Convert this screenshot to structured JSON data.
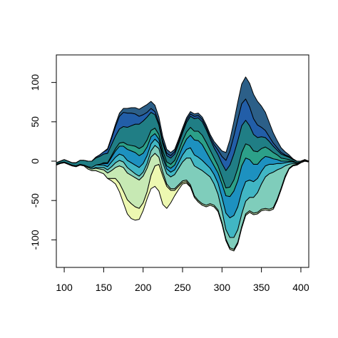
{
  "chart_data": {
    "type": "area",
    "subtype": "streamgraph",
    "title": "",
    "xlabel": "",
    "ylabel": "",
    "xlim": [
      90,
      410
    ],
    "ylim": [
      -135,
      135
    ],
    "grid": false,
    "legend": "none",
    "x_ticks": [
      100,
      150,
      200,
      250,
      300,
      350,
      400
    ],
    "y_ticks": [
      -100,
      -50,
      0,
      50,
      100
    ],
    "x_tick_labels": [
      "100",
      "150",
      "200",
      "250",
      "300",
      "350",
      "400"
    ],
    "y_tick_labels": [
      "-100",
      "-50",
      "0",
      "50",
      "100"
    ],
    "x": [
      90,
      95,
      100,
      105,
      110,
      115,
      120,
      125,
      130,
      135,
      140,
      145,
      150,
      155,
      160,
      165,
      170,
      175,
      180,
      185,
      190,
      195,
      200,
      205,
      210,
      215,
      220,
      225,
      230,
      235,
      240,
      245,
      250,
      255,
      260,
      265,
      270,
      275,
      280,
      285,
      290,
      295,
      300,
      305,
      310,
      315,
      320,
      325,
      330,
      335,
      340,
      345,
      350,
      355,
      360,
      365,
      370,
      375,
      380,
      385,
      390,
      395,
      400,
      405,
      410
    ],
    "baseline": [
      -5,
      -3,
      -2,
      -4,
      -6,
      -7,
      -5,
      -6,
      -10,
      -12,
      -12,
      -14,
      -16,
      -22,
      -25,
      -29,
      -39,
      -53,
      -67,
      -73,
      -75,
      -74,
      -63,
      -48,
      -35,
      -32,
      -38,
      -55,
      -60,
      -53,
      -44,
      -36,
      -29,
      -28,
      -33,
      -46,
      -52,
      -56,
      -58,
      -56,
      -58,
      -64,
      -80,
      -101,
      -112,
      -114,
      -105,
      -85,
      -69,
      -65,
      -68,
      -67,
      -63,
      -62,
      -63,
      -61,
      -50,
      -36,
      -21,
      -10,
      -6,
      -5,
      -2,
      0,
      -1
    ],
    "series": [
      {
        "name": "",
        "color": "#edf8b1",
        "values": [
          0,
          0,
          0,
          0,
          0,
          0,
          0,
          0,
          0,
          0,
          0,
          0,
          0,
          0,
          3,
          7,
          11,
          15,
          18,
          19,
          17,
          14,
          10,
          9,
          17,
          26,
          34,
          36,
          28,
          16,
          7,
          4,
          2,
          2,
          1,
          0,
          0,
          0,
          0,
          0,
          0,
          0,
          0,
          0,
          0,
          0,
          0,
          0,
          0,
          0,
          0,
          0,
          0,
          0,
          0,
          0,
          0,
          0,
          0,
          0,
          0,
          0,
          0,
          0,
          0
        ]
      },
      {
        "name": "",
        "color": "#c7e9b4",
        "values": [
          1,
          1,
          1,
          1,
          1,
          1,
          1,
          1,
          2,
          2,
          3,
          4,
          5,
          7,
          10,
          14,
          22,
          30,
          34,
          36,
          37,
          36,
          34,
          30,
          23,
          16,
          9,
          5,
          3,
          2,
          2,
          2,
          2,
          2,
          2,
          2,
          2,
          2,
          2,
          2,
          2,
          2,
          2,
          2,
          2,
          2,
          2,
          2,
          2,
          2,
          2,
          2,
          2,
          2,
          2,
          2,
          2,
          2,
          2,
          1,
          1,
          1,
          1,
          1,
          1
        ]
      },
      {
        "name": "",
        "color": "#7fcdbb",
        "values": [
          0,
          0,
          0,
          0,
          0,
          0,
          0,
          0,
          0,
          0,
          1,
          2,
          3,
          4,
          5,
          6,
          7,
          7,
          7,
          6,
          5,
          5,
          5,
          6,
          8,
          10,
          11,
          12,
          13,
          15,
          18,
          21,
          24,
          28,
          34,
          38,
          41,
          42,
          40,
          34,
          27,
          20,
          15,
          12,
          13,
          15,
          16,
          16,
          16,
          17,
          20,
          25,
          32,
          40,
          45,
          45,
          37,
          25,
          13,
          5,
          2,
          1,
          0,
          0,
          0
        ]
      },
      {
        "name": "",
        "color": "#41b6c4",
        "values": [
          0,
          0,
          0,
          0,
          0,
          0,
          0,
          0,
          1,
          2,
          3,
          3,
          3,
          4,
          6,
          7,
          8,
          8,
          9,
          10,
          11,
          11,
          11,
          10,
          9,
          8,
          7,
          6,
          6,
          6,
          6,
          7,
          9,
          11,
          13,
          14,
          14,
          13,
          12,
          11,
          12,
          14,
          17,
          21,
          25,
          28,
          29,
          28,
          25,
          22,
          20,
          18,
          16,
          14,
          12,
          10,
          8,
          6,
          4,
          3,
          2,
          1,
          0,
          0,
          0
        ]
      },
      {
        "name": "",
        "color": "#1d91c0",
        "values": [
          0,
          0,
          0,
          0,
          0,
          0,
          0,
          0,
          0,
          0,
          0,
          1,
          2,
          4,
          6,
          8,
          10,
          12,
          14,
          15,
          16,
          15,
          13,
          11,
          9,
          7,
          5,
          4,
          4,
          5,
          6,
          8,
          10,
          13,
          16,
          19,
          21,
          20,
          16,
          12,
          11,
          13,
          17,
          22,
          27,
          31,
          33,
          33,
          30,
          26,
          22,
          18,
          15,
          12,
          9,
          7,
          5,
          3,
          2,
          1,
          0,
          0,
          0,
          0,
          0
        ]
      },
      {
        "name": "",
        "color": "#2ca089",
        "values": [
          0,
          0,
          0,
          0,
          0,
          0,
          0,
          0,
          0,
          0,
          0,
          0,
          1,
          1,
          2,
          3,
          4,
          5,
          6,
          7,
          8,
          9,
          9,
          9,
          8,
          7,
          6,
          5,
          5,
          5,
          6,
          7,
          8,
          9,
          10,
          11,
          12,
          12,
          12,
          11,
          10,
          9,
          9,
          10,
          12,
          14,
          16,
          17,
          18,
          18,
          17,
          16,
          14,
          12,
          10,
          8,
          6,
          4,
          3,
          2,
          1,
          0,
          0,
          0,
          0
        ]
      },
      {
        "name": "",
        "color": "#207e85",
        "values": [
          2,
          2,
          3,
          3,
          3,
          4,
          5,
          6,
          7,
          8,
          9,
          10,
          11,
          12,
          14,
          16,
          18,
          20,
          22,
          25,
          28,
          31,
          32,
          29,
          23,
          17,
          12,
          9,
          8,
          8,
          8,
          9,
          10,
          12,
          14,
          16,
          17,
          17,
          16,
          14,
          13,
          14,
          17,
          22,
          28,
          33,
          35,
          34,
          30,
          25,
          21,
          18,
          15,
          12,
          10,
          8,
          6,
          5,
          4,
          3,
          2,
          2,
          1,
          1,
          0
        ]
      },
      {
        "name": "",
        "color": "#225ea8",
        "values": [
          0,
          0,
          0,
          0,
          0,
          0,
          0,
          0,
          0,
          0,
          1,
          2,
          3,
          5,
          8,
          12,
          16,
          18,
          18,
          16,
          13,
          10,
          8,
          6,
          5,
          4,
          3,
          3,
          3,
          3,
          3,
          3,
          3,
          3,
          3,
          3,
          3,
          3,
          3,
          3,
          4,
          6,
          9,
          13,
          18,
          23,
          27,
          28,
          27,
          24,
          20,
          16,
          12,
          9,
          6,
          4,
          3,
          2,
          1,
          1,
          0,
          0,
          0,
          0,
          0
        ]
      },
      {
        "name": "",
        "color": "#2c5f88",
        "values": [
          0,
          0,
          0,
          0,
          0,
          0,
          0,
          0,
          0,
          0,
          0,
          0,
          0,
          1,
          2,
          3,
          4,
          5,
          6,
          7,
          8,
          9,
          10,
          10,
          9,
          8,
          7,
          6,
          5,
          4,
          3,
          3,
          3,
          3,
          3,
          3,
          3,
          3,
          3,
          3,
          4,
          5,
          7,
          10,
          14,
          18,
          22,
          25,
          28,
          30,
          31,
          30,
          27,
          23,
          18,
          13,
          9,
          6,
          4,
          2,
          1,
          0,
          0,
          0,
          0
        ]
      }
    ]
  }
}
